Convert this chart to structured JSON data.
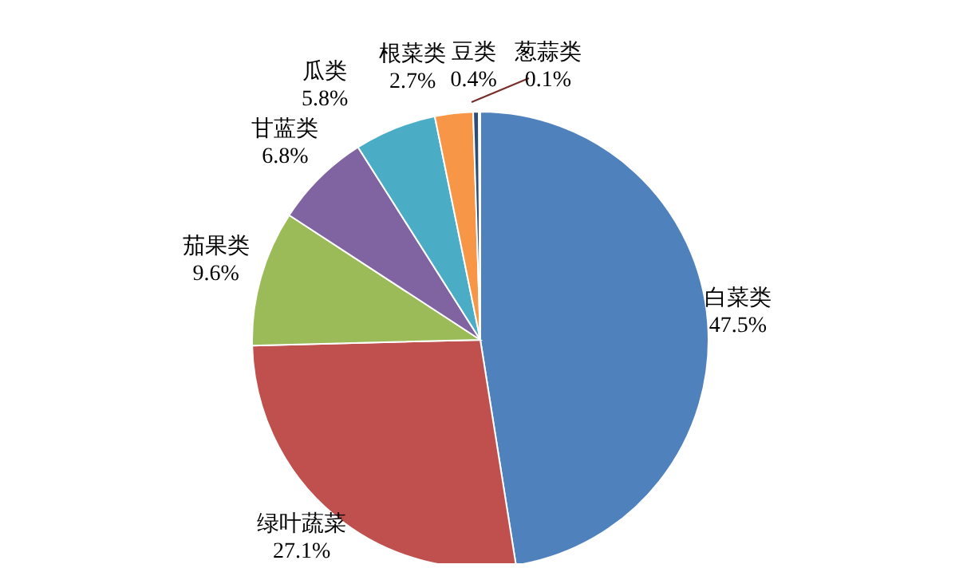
{
  "chart_data": {
    "type": "pie",
    "categories": [
      "白菜类",
      "绿叶蔬菜",
      "茄果类",
      "甘蓝类",
      "瓜类",
      "根菜类",
      "豆类",
      "葱蒜类"
    ],
    "values": [
      47.5,
      27.1,
      9.6,
      6.8,
      5.8,
      2.7,
      0.4,
      0.1
    ],
    "value_labels": [
      "47.5%",
      "27.1%",
      "9.6%",
      "6.8%",
      "5.8%",
      "2.7%",
      "0.4%",
      "0.1%"
    ],
    "colors": [
      "#4f81bd",
      "#c0504d",
      "#9bbb59",
      "#8064a2",
      "#4bacc6",
      "#f79646",
      "#2c4d75",
      "#772c2a"
    ]
  }
}
